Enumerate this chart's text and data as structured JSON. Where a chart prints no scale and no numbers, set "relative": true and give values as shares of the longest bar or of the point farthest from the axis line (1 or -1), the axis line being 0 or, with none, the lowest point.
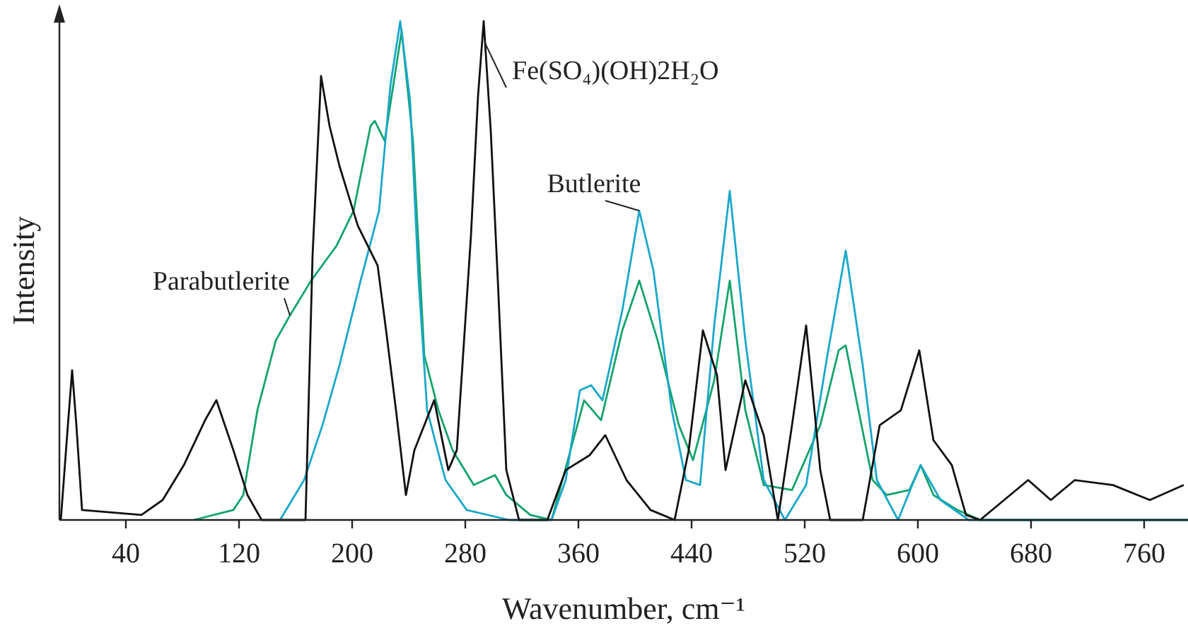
{
  "chart_data": {
    "type": "line",
    "relative": true,
    "xlabel": "Wavenumber, cm⁻¹",
    "ylabel": "Intensity",
    "xlim": [
      -7,
      791
    ],
    "xticks": [
      40,
      120,
      200,
      280,
      360,
      440,
      520,
      600,
      680,
      760
    ],
    "grid": false,
    "marker": "none",
    "line_style": "solid",
    "series": [
      {
        "name": "Parabutlerite",
        "color": "#14a36b",
        "x": [
          88,
          116,
          123,
          133,
          146,
          156,
          171,
          189,
          201,
          213,
          216,
          223,
          235,
          243,
          251,
          261,
          271,
          286,
          301,
          309,
          326,
          341,
          364,
          376,
          391,
          403,
          416,
          431,
          441,
          456,
          467,
          478,
          491,
          511,
          531,
          544,
          549,
          558,
          568,
          578,
          594,
          602,
          611,
          628,
          644,
          791
        ],
        "values": [
          0,
          0.02,
          0.05,
          0.22,
          0.36,
          0.41,
          0.48,
          0.55,
          0.62,
          0.79,
          0.8,
          0.76,
          0.98,
          0.76,
          0.33,
          0.22,
          0.14,
          0.07,
          0.09,
          0.05,
          0.01,
          0,
          0.24,
          0.2,
          0.38,
          0.48,
          0.36,
          0.19,
          0.12,
          0.28,
          0.48,
          0.22,
          0.07,
          0.06,
          0.19,
          0.34,
          0.35,
          0.22,
          0.08,
          0.05,
          0.06,
          0.11,
          0.05,
          0.02,
          0,
          0
        ]
      },
      {
        "name": "Butlerite",
        "color": "#1aa7c9",
        "x": [
          149,
          166,
          179,
          191,
          206,
          219,
          227,
          234,
          241,
          247,
          253,
          266,
          281,
          311,
          341,
          351,
          361,
          369,
          377,
          391,
          403,
          413,
          426,
          436,
          446,
          456,
          467,
          478,
          491,
          506,
          521,
          536,
          549,
          561,
          571,
          586,
          596,
          602,
          616,
          636,
          791
        ],
        "values": [
          0,
          0.08,
          0.19,
          0.31,
          0.48,
          0.62,
          0.87,
          1,
          0.84,
          0.48,
          0.22,
          0.08,
          0.02,
          0,
          0,
          0.08,
          0.26,
          0.27,
          0.24,
          0.42,
          0.62,
          0.5,
          0.22,
          0.08,
          0.07,
          0.39,
          0.66,
          0.36,
          0.08,
          0,
          0.07,
          0.33,
          0.54,
          0.31,
          0.08,
          0,
          0.07,
          0.11,
          0.04,
          0,
          0
        ]
      },
      {
        "name": "Fe(SO₄)(OH)2H₂O",
        "color": "#111111",
        "x": [
          -6,
          -1,
          2,
          5,
          9,
          51,
          66,
          81,
          96,
          104,
          116,
          126,
          136,
          167,
          172,
          178,
          184,
          191,
          204,
          218,
          224,
          231,
          238,
          244,
          258,
          268,
          274,
          284,
          289,
          293,
          298,
          303,
          309,
          318,
          338,
          351,
          368,
          379,
          394,
          411,
          428,
          438,
          448,
          458,
          464,
          478,
          491,
          501,
          511,
          521,
          531,
          538,
          561,
          573,
          588,
          601,
          611,
          624,
          634,
          644,
          661,
          678,
          694,
          711,
          738,
          764,
          788
        ],
        "values": [
          0,
          0.19,
          0.3,
          0.19,
          0.02,
          0.01,
          0.04,
          0.11,
          0.2,
          0.24,
          0.14,
          0.05,
          0,
          0,
          0.53,
          0.89,
          0.79,
          0.71,
          0.59,
          0.51,
          0.38,
          0.22,
          0.05,
          0.14,
          0.24,
          0.1,
          0.14,
          0.57,
          0.85,
          1,
          0.78,
          0.48,
          0.1,
          0,
          0,
          0.1,
          0.13,
          0.17,
          0.08,
          0.02,
          0,
          0.14,
          0.38,
          0.29,
          0.1,
          0.28,
          0.17,
          0,
          0.19,
          0.39,
          0.1,
          0,
          0,
          0.19,
          0.22,
          0.34,
          0.16,
          0.11,
          0.01,
          0,
          0.04,
          0.08,
          0.04,
          0.08,
          0.07,
          0.04,
          0.07
        ]
      }
    ]
  }
}
